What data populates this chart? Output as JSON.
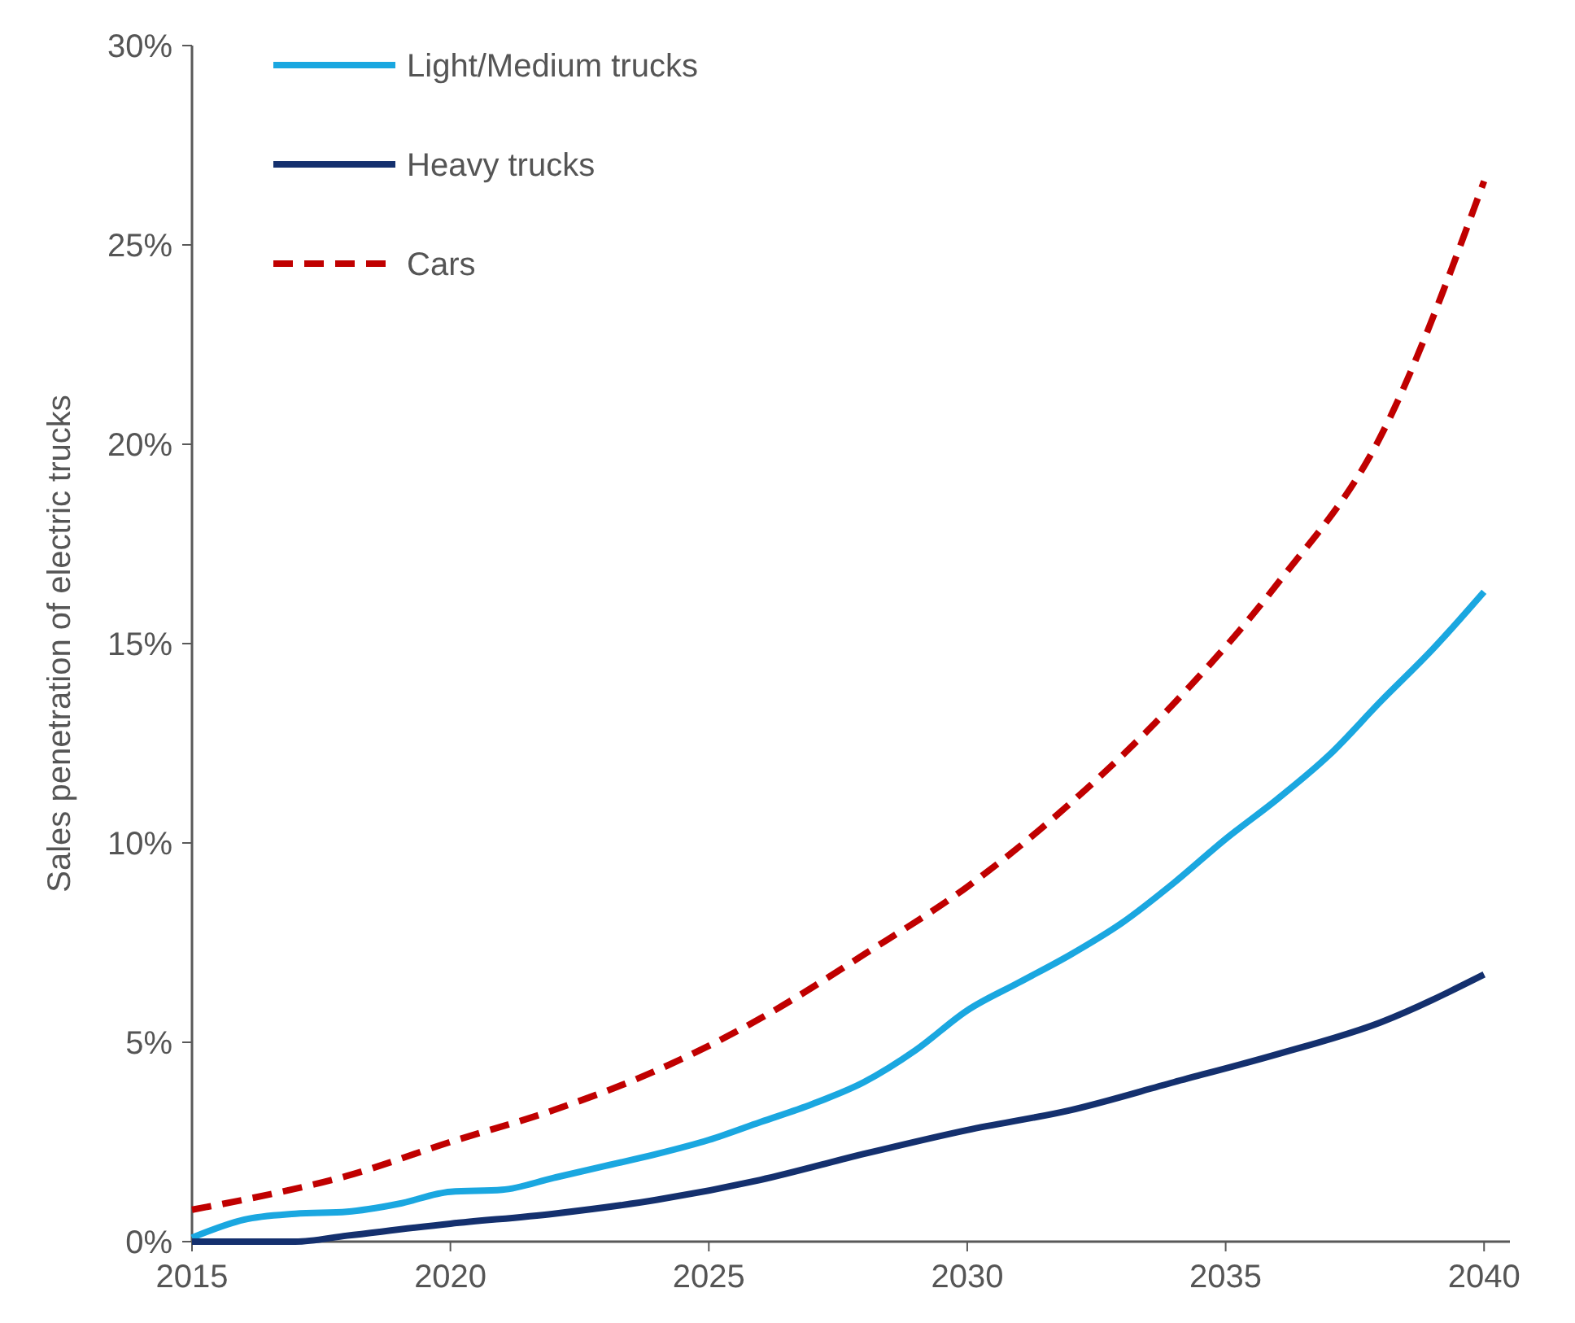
{
  "chart_data": {
    "type": "line",
    "ylabel": "Sales penetration of electric trucks",
    "xlim": [
      2015,
      2040.5
    ],
    "xticks": [
      2015,
      2020,
      2025,
      2030,
      2035,
      2040
    ],
    "ylim": [
      0,
      30
    ],
    "yticks": [
      {
        "value": 0,
        "label": "0%"
      },
      {
        "value": 5,
        "label": "5%"
      },
      {
        "value": 10,
        "label": "10%"
      },
      {
        "value": 15,
        "label": "15%"
      },
      {
        "value": 20,
        "label": "20%"
      },
      {
        "value": 25,
        "label": "25%"
      },
      {
        "value": 30,
        "label": "30%"
      }
    ],
    "grid": false,
    "legend": "top left",
    "marker": "none",
    "series": [
      {
        "name": "Light/Medium trucks",
        "color": "#1aa7e0",
        "line_style": "solid",
        "x": [
          2015,
          2016,
          2017,
          2018,
          2019,
          2020,
          2021,
          2022,
          2023,
          2024,
          2025,
          2026,
          2027,
          2028,
          2029,
          2030,
          2031,
          2032,
          2033,
          2034,
          2035,
          2036,
          2037,
          2038,
          2039,
          2040
        ],
        "values": [
          0.1,
          0.55,
          0.7,
          0.75,
          0.95,
          1.25,
          1.3,
          1.6,
          1.9,
          2.2,
          2.55,
          3.0,
          3.45,
          4.0,
          4.8,
          5.8,
          6.5,
          7.2,
          8.0,
          9.0,
          10.1,
          11.1,
          12.2,
          13.55,
          14.85,
          16.3
        ]
      },
      {
        "name": "Heavy trucks",
        "color": "#14306e",
        "line_style": "solid",
        "x": [
          2015,
          2017,
          2018,
          2020,
          2022,
          2024,
          2026,
          2028,
          2030,
          2032,
          2034,
          2036,
          2038,
          2040
        ],
        "values": [
          0,
          0,
          0.15,
          0.45,
          0.7,
          1.05,
          1.55,
          2.2,
          2.8,
          3.3,
          4.0,
          4.7,
          5.5,
          6.7
        ]
      },
      {
        "name": "Cars",
        "color": "#c00000",
        "line_style": "dashed",
        "x": [
          2015,
          2016,
          2018,
          2020,
          2022,
          2024,
          2026,
          2028,
          2030,
          2032,
          2034,
          2036,
          2038,
          2040
        ],
        "values": [
          0.8,
          1.05,
          1.65,
          2.5,
          3.3,
          4.3,
          5.6,
          7.2,
          8.9,
          11.0,
          13.5,
          16.5,
          20.2,
          26.6
        ]
      }
    ]
  }
}
